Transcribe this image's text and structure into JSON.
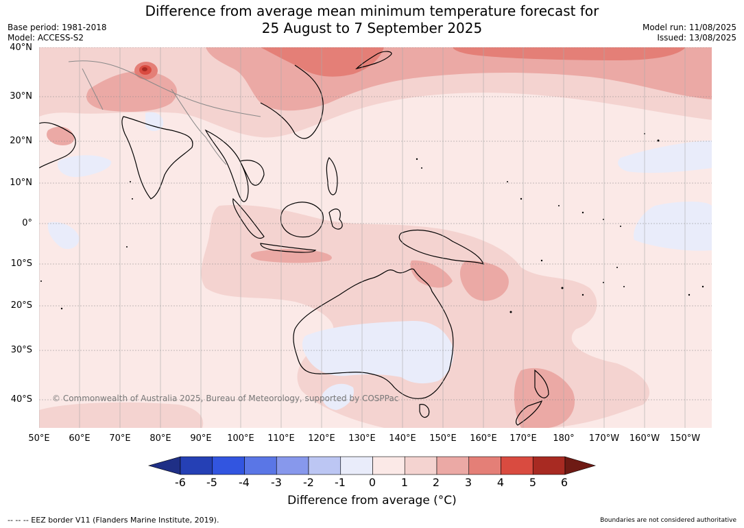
{
  "title": {
    "line1": "Difference from average mean minimum temperature forecast for",
    "line2": "25 August to 7 September 2025"
  },
  "meta_left": {
    "base_period": "Base period: 1981-2018",
    "model": "Model: ACCESS-S2"
  },
  "meta_right": {
    "model_run": "Model run: 11/08/2025",
    "issued": "Issued: 13/08/2025"
  },
  "map": {
    "lat_labels": [
      "40°N",
      "30°N",
      "20°N",
      "10°N",
      "0°",
      "10°S",
      "20°S",
      "30°S",
      "40°S"
    ],
    "lon_labels": [
      "50°E",
      "60°E",
      "70°E",
      "80°E",
      "90°E",
      "100°E",
      "110°E",
      "120°E",
      "130°E",
      "140°E",
      "150°E",
      "160°E",
      "170°E",
      "180°",
      "170°W",
      "160°W",
      "150°W"
    ],
    "copyright": "© Commonwealth of Australia 2025, Bureau of Meteorology, supported by COSPPac"
  },
  "colorbar": {
    "ticks": [
      "-6",
      "-5",
      "-4",
      "-3",
      "-2",
      "-1",
      "0",
      "1",
      "2",
      "3",
      "4",
      "5",
      "6"
    ],
    "colors": [
      "#1f2f86",
      "#2540b5",
      "#3255e0",
      "#5a76e6",
      "#8798ec",
      "#bcc6f3",
      "#e9ecfa",
      "#fbe9e7",
      "#f4d3d0",
      "#eba9a5",
      "#e47f77",
      "#d94b40",
      "#a82a22",
      "#6e1a14"
    ],
    "label": "Difference from average (°C)"
  },
  "footer": {
    "eez": "--  --  -- EEZ border V11 (Flanders Marine Institute, 2019).",
    "boundaries": "Boundaries are not considered authoritative"
  }
}
